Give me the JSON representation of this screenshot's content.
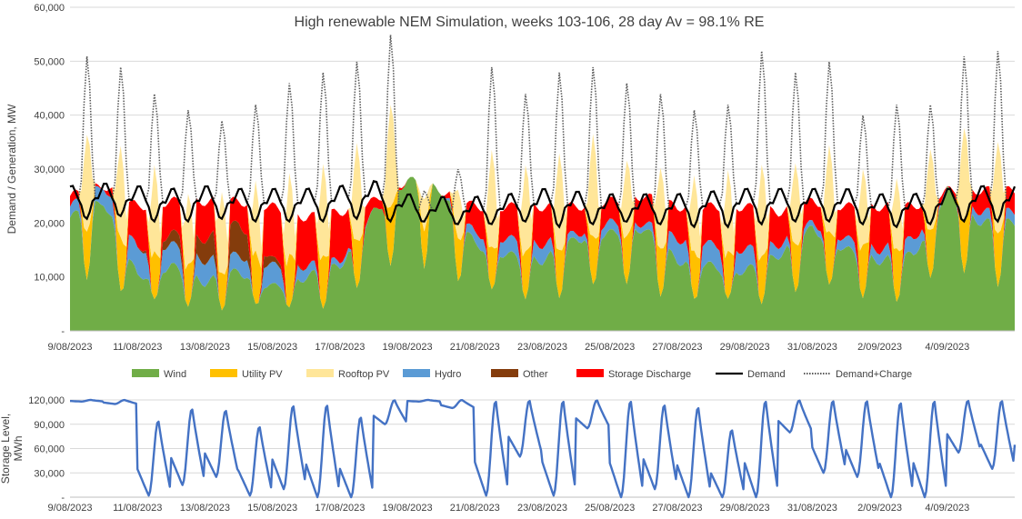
{
  "chart_data": [
    {
      "type": "area",
      "title": "High renewable NEM Simulation, weeks 103-106, 28 day Av = 98.1% RE",
      "ylabel": "Demand / Generation, MW",
      "xlabel": "",
      "ylim": [
        0,
        60000
      ],
      "yticks": [
        "-",
        "10,000",
        "20,000",
        "30,000",
        "40,000",
        "50,000",
        "60,000"
      ],
      "x_tick_labels": [
        "9/08/2023",
        "11/08/2023",
        "13/08/2023",
        "15/08/2023",
        "17/08/2023",
        "19/08/2023",
        "21/08/2023",
        "23/08/2023",
        "25/08/2023",
        "27/08/2023",
        "29/08/2023",
        "31/08/2023",
        "2/09/2023",
        "4/09/2023"
      ],
      "days": [
        "9/08",
        "10/08",
        "11/08",
        "12/08",
        "13/08",
        "14/08",
        "15/08",
        "16/08",
        "17/08",
        "18/08",
        "19/08",
        "20/08",
        "21/08",
        "22/08",
        "23/08",
        "24/08",
        "25/08",
        "26/08",
        "27/08",
        "28/08",
        "29/08",
        "30/08",
        "31/08",
        "1/09",
        "2/09",
        "3/09",
        "4/09",
        "5/09"
      ],
      "series": [
        {
          "name": "Wind",
          "color": "#70AD47",
          "daily_night_mw": [
            21000,
            24000,
            10000,
            12000,
            9000,
            11000,
            8000,
            10000,
            12000,
            22000,
            28000,
            26000,
            16000,
            14000,
            13000,
            17000,
            18000,
            19000,
            13000,
            12000,
            11000,
            14000,
            19000,
            15000,
            13000,
            14000,
            26000,
            20000
          ]
        },
        {
          "name": "Utility PV",
          "color": "#FFC000",
          "daily_peak_mw": [
            9000,
            10000,
            9000,
            8000,
            7000,
            10000,
            10000,
            10000,
            9000,
            11000,
            7000,
            8000,
            8000,
            9000,
            9000,
            9000,
            9000,
            9000,
            9000,
            9000,
            9000,
            9000,
            10000,
            10000,
            10000,
            9000,
            10000,
            10000
          ]
        },
        {
          "name": "Rooftop PV",
          "color": "#FFE699",
          "daily_peak_mw": [
            18000,
            17000,
            16000,
            13000,
            15000,
            13000,
            15000,
            17000,
            18000,
            19000,
            6000,
            9000,
            18000,
            16000,
            18000,
            19000,
            14000,
            15000,
            14000,
            15000,
            17000,
            15000,
            16000,
            14000,
            13000,
            15000,
            17000,
            17000
          ]
        },
        {
          "name": "Hydro",
          "color": "#5B9BD5",
          "daily_night_mw": [
            2000,
            3000,
            5000,
            4000,
            4000,
            3000,
            4000,
            2000,
            1000,
            0,
            0,
            0,
            2000,
            3000,
            3000,
            1000,
            2000,
            1000,
            4000,
            4000,
            4000,
            2000,
            1000,
            2000,
            2000,
            3000,
            0,
            2000
          ]
        },
        {
          "name": "Other",
          "color": "#843C0C",
          "daily_night_mw": [
            0,
            0,
            0,
            2000,
            4000,
            6000,
            1000,
            0,
            0,
            0,
            0,
            0,
            0,
            0,
            0,
            0,
            0,
            0,
            0,
            0,
            0,
            0,
            0,
            0,
            0,
            0,
            0,
            0
          ]
        },
        {
          "name": "Storage Discharge",
          "color": "#FF0000",
          "daily_night_mw": [
            2000,
            0,
            8000,
            6000,
            7000,
            4000,
            10000,
            9000,
            9000,
            2000,
            0,
            0,
            5000,
            6000,
            7000,
            5000,
            4000,
            5000,
            6000,
            7000,
            8000,
            6000,
            4000,
            6000,
            8000,
            6000,
            0,
            4000
          ]
        },
        {
          "name": "Demand",
          "color": "#000000",
          "style": "solid",
          "daily_night_mw": [
            25500,
            26000,
            25500,
            25000,
            25500,
            25000,
            25000,
            25000,
            25500,
            26500,
            24000,
            23500,
            23500,
            24000,
            25000,
            24500,
            24000,
            24000,
            24000,
            24500,
            25000,
            25000,
            25000,
            25000,
            24000,
            24000,
            25000,
            25500
          ],
          "daily_min_mw": [
            19500,
            20000,
            19000,
            19000,
            19500,
            19000,
            19000,
            19000,
            19500,
            19000,
            19000,
            18500,
            18500,
            19000,
            18000,
            18500,
            19000,
            18500,
            18000,
            18000,
            18500,
            19000,
            19000,
            18500,
            18000,
            18500,
            19000,
            19000
          ]
        },
        {
          "name": "Demand+Charge",
          "color": "#595959",
          "style": "dotted",
          "daily_peak_mw": [
            51000,
            49000,
            44000,
            41000,
            39000,
            42000,
            46000,
            48000,
            50000,
            55000,
            26000,
            30000,
            49000,
            44000,
            48000,
            49000,
            46000,
            44000,
            41000,
            42000,
            52000,
            48000,
            50000,
            40000,
            42000,
            42000,
            51000,
            52000
          ]
        }
      ],
      "legend": [
        "Wind",
        "Utility PV",
        "Rooftop PV",
        "Hydro",
        "Other",
        "Storage Discharge",
        "Demand",
        "Demand+Charge"
      ],
      "legend_position": "bottom"
    },
    {
      "type": "line",
      "title": "",
      "ylabel": "Storage Level, MWh",
      "ylim": [
        0,
        120000
      ],
      "yticks": [
        "-",
        "30,000",
        "60,000",
        "90,000",
        "120,000"
      ],
      "x_tick_labels": [
        "9/08/2023",
        "11/08/2023",
        "13/08/2023",
        "15/08/2023",
        "17/08/2023",
        "19/08/2023",
        "21/08/2023",
        "23/08/2023",
        "25/08/2023",
        "27/08/2023",
        "29/08/2023",
        "31/08/2023",
        "2/09/2023",
        "4/09/2023"
      ],
      "series": [
        {
          "name": "Storage Level",
          "color": "#4472C4",
          "daily_max_mwh": [
            120000,
            120000,
            95000,
            110000,
            108000,
            88000,
            114000,
            115000,
            100000,
            120000,
            120000,
            120000,
            120000,
            120000,
            120000,
            120000,
            120000,
            115000,
            112000,
            84000,
            120000,
            120000,
            120000,
            120000,
            118000,
            120000,
            120000,
            120000
          ],
          "daily_min_mwh": [
            118000,
            115000,
            2000,
            15000,
            25000,
            2000,
            10000,
            0,
            0,
            90000,
            118000,
            110000,
            2000,
            50000,
            2000,
            85000,
            0,
            10000,
            0,
            0,
            0,
            80000,
            30000,
            25000,
            0,
            0,
            55000,
            35000
          ]
        }
      ]
    }
  ]
}
